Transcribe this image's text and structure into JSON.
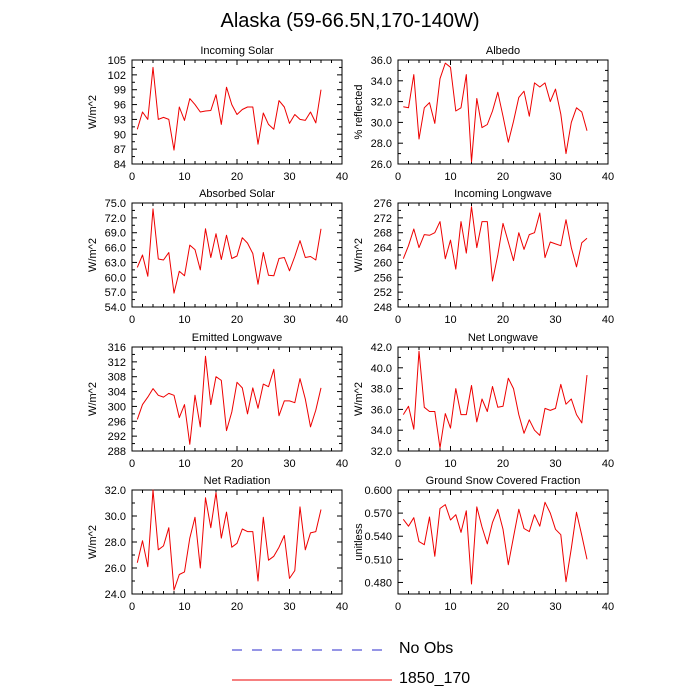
{
  "figure": {
    "title": "Alaska (59-66.5N,170-140W)",
    "legend": [
      {
        "label": "No Obs",
        "color": "#2b2bcc",
        "style": "dashed"
      },
      {
        "label": "1850_170",
        "color": "#ee0000",
        "style": "solid"
      }
    ]
  },
  "chart_data": [
    {
      "type": "line",
      "title": "Incoming Solar",
      "ylabel": "W/m^2",
      "xlabel": "",
      "xlim": [
        0,
        40
      ],
      "ylim": [
        84,
        105
      ],
      "xticks": [
        0,
        10,
        20,
        30,
        40
      ],
      "yticks": [
        84,
        87,
        90,
        93,
        96,
        99,
        102,
        105
      ],
      "ytick_labels": [
        "84",
        "87",
        "90",
        "93",
        "96",
        "99",
        "102",
        "105"
      ],
      "x": [
        1,
        2,
        3,
        4,
        5,
        6,
        7,
        8,
        9,
        10,
        11,
        12,
        13,
        14,
        15,
        16,
        17,
        18,
        19,
        20,
        21,
        22,
        23,
        24,
        25,
        26,
        27,
        28,
        29,
        30,
        31,
        32,
        33,
        34,
        35,
        36
      ],
      "series": [
        {
          "name": "1850_170",
          "color": "#ee0000",
          "values": [
            91.0,
            94.5,
            93.0,
            103.5,
            93.0,
            93.4,
            93.0,
            86.8,
            95.5,
            92.8,
            97.2,
            96.0,
            94.5,
            94.7,
            94.8,
            98.0,
            92.0,
            99.5,
            96.0,
            94.0,
            95.0,
            95.5,
            95.5,
            88.0,
            94.3,
            92.0,
            91.0,
            96.8,
            95.5,
            92.2,
            94.0,
            93.0,
            92.8,
            94.5,
            92.3,
            99.0
          ]
        }
      ]
    },
    {
      "type": "line",
      "title": "Albedo",
      "ylabel": "% reflected",
      "xlabel": "",
      "xlim": [
        0,
        40
      ],
      "ylim": [
        26,
        36
      ],
      "xticks": [
        0,
        10,
        20,
        30,
        40
      ],
      "yticks": [
        26,
        28,
        30,
        32,
        34,
        36
      ],
      "ytick_labels": [
        "26.0",
        "28.0",
        "30.0",
        "32.0",
        "34.0",
        "36.0"
      ],
      "x": [
        1,
        2,
        3,
        4,
        5,
        6,
        7,
        8,
        9,
        10,
        11,
        12,
        13,
        14,
        15,
        16,
        17,
        18,
        19,
        20,
        21,
        22,
        23,
        24,
        25,
        26,
        27,
        28,
        29,
        30,
        31,
        32,
        33,
        34,
        35,
        36
      ],
      "series": [
        {
          "name": "1850_170",
          "color": "#ee0000",
          "values": [
            31.5,
            31.4,
            34.6,
            28.4,
            31.4,
            31.9,
            29.9,
            34.2,
            35.7,
            35.3,
            31.1,
            31.4,
            34.6,
            26.2,
            32.3,
            29.5,
            29.8,
            31.1,
            32.9,
            30.6,
            28.1,
            30.1,
            32.4,
            33.0,
            30.6,
            33.8,
            33.4,
            33.8,
            32.0,
            33.2,
            30.8,
            27.0,
            30.0,
            31.4,
            31.0,
            29.2
          ]
        }
      ]
    },
    {
      "type": "line",
      "title": "Absorbed Solar",
      "ylabel": "W/m^2",
      "xlabel": "",
      "xlim": [
        0,
        40
      ],
      "ylim": [
        54,
        75
      ],
      "xticks": [
        0,
        10,
        20,
        30,
        40
      ],
      "yticks": [
        54,
        57,
        60,
        63,
        66,
        69,
        72,
        75
      ],
      "ytick_labels": [
        "54.0",
        "57.0",
        "60.0",
        "63.0",
        "66.0",
        "69.0",
        "72.0",
        "75.0"
      ],
      "x": [
        1,
        2,
        3,
        4,
        5,
        6,
        7,
        8,
        9,
        10,
        11,
        12,
        13,
        14,
        15,
        16,
        17,
        18,
        19,
        20,
        21,
        22,
        23,
        24,
        25,
        26,
        27,
        28,
        29,
        30,
        31,
        32,
        33,
        34,
        35,
        36
      ],
      "series": [
        {
          "name": "1850_170",
          "color": "#ee0000",
          "values": [
            62.0,
            64.5,
            60.2,
            73.8,
            63.7,
            63.5,
            65.0,
            56.8,
            61.2,
            60.3,
            66.5,
            65.6,
            61.5,
            69.8,
            64.0,
            68.8,
            63.6,
            68.5,
            63.8,
            64.3,
            68.0,
            66.9,
            64.8,
            58.6,
            65.0,
            60.4,
            60.3,
            63.8,
            64.0,
            61.3,
            64.2,
            67.4,
            64.0,
            64.2,
            63.5,
            69.8
          ]
        }
      ]
    },
    {
      "type": "line",
      "title": "Incoming Longwave",
      "ylabel": "W/m^2",
      "xlabel": "",
      "xlim": [
        0,
        40
      ],
      "ylim": [
        248,
        276
      ],
      "xticks": [
        0,
        10,
        20,
        30,
        40
      ],
      "yticks": [
        248,
        252,
        256,
        260,
        264,
        268,
        272,
        276
      ],
      "ytick_labels": [
        "248",
        "252",
        "256",
        "260",
        "264",
        "268",
        "272",
        "276"
      ],
      "x": [
        1,
        2,
        3,
        4,
        5,
        6,
        7,
        8,
        9,
        10,
        11,
        12,
        13,
        14,
        15,
        16,
        17,
        18,
        19,
        20,
        21,
        22,
        23,
        24,
        25,
        26,
        27,
        28,
        29,
        30,
        31,
        32,
        33,
        34,
        35,
        36
      ],
      "series": [
        {
          "name": "1850_170",
          "color": "#ee0000",
          "values": [
            261.0,
            264.5,
            269.0,
            264.0,
            267.5,
            267.3,
            268.0,
            271.0,
            261.0,
            266.0,
            258.2,
            271.0,
            262.5,
            275.0,
            264.0,
            271.0,
            271.0,
            255.0,
            262.0,
            270.5,
            265.5,
            260.5,
            268.0,
            263.5,
            267.5,
            268.0,
            273.3,
            261.3,
            265.5,
            265.0,
            264.5,
            271.5,
            264.0,
            258.8,
            265.3,
            266.5
          ]
        }
      ]
    },
    {
      "type": "line",
      "title": "Emitted Longwave",
      "ylabel": "W/m^2",
      "xlabel": "",
      "xlim": [
        0,
        40
      ],
      "ylim": [
        288,
        316
      ],
      "xticks": [
        0,
        10,
        20,
        30,
        40
      ],
      "yticks": [
        288,
        292,
        296,
        300,
        304,
        308,
        312,
        316
      ],
      "ytick_labels": [
        "288",
        "292",
        "296",
        "300",
        "304",
        "308",
        "312",
        "316"
      ],
      "x": [
        1,
        2,
        3,
        4,
        5,
        6,
        7,
        8,
        9,
        10,
        11,
        12,
        13,
        14,
        15,
        16,
        17,
        18,
        19,
        20,
        21,
        22,
        23,
        24,
        25,
        26,
        27,
        28,
        29,
        30,
        31,
        32,
        33,
        34,
        35,
        36
      ],
      "series": [
        {
          "name": "1850_170",
          "color": "#ee0000",
          "values": [
            296.5,
            300.5,
            302.5,
            304.8,
            303.0,
            302.5,
            303.5,
            303.0,
            297.0,
            300.5,
            289.8,
            303.0,
            294.5,
            313.5,
            300.5,
            308.0,
            307.0,
            293.5,
            298.5,
            306.5,
            305.0,
            298.0,
            305.0,
            299.5,
            306.0,
            305.3,
            310.0,
            297.5,
            301.5,
            301.5,
            301.0,
            307.5,
            302.0,
            294.5,
            299.0,
            305.0
          ]
        }
      ]
    },
    {
      "type": "line",
      "title": "Net Longwave",
      "ylabel": "W/m^2",
      "xlabel": "",
      "xlim": [
        0,
        40
      ],
      "ylim": [
        32,
        42
      ],
      "xticks": [
        0,
        10,
        20,
        30,
        40
      ],
      "yticks": [
        32,
        34,
        36,
        38,
        40,
        42
      ],
      "ytick_labels": [
        "32.0",
        "34.0",
        "36.0",
        "38.0",
        "40.0",
        "42.0"
      ],
      "x": [
        1,
        2,
        3,
        4,
        5,
        6,
        7,
        8,
        9,
        10,
        11,
        12,
        13,
        14,
        15,
        16,
        17,
        18,
        19,
        20,
        21,
        22,
        23,
        24,
        25,
        26,
        27,
        28,
        29,
        30,
        31,
        32,
        33,
        34,
        35,
        36
      ],
      "series": [
        {
          "name": "1850_170",
          "color": "#ee0000",
          "values": [
            35.5,
            36.3,
            34.1,
            41.6,
            36.2,
            35.8,
            35.8,
            32.3,
            35.6,
            34.2,
            38.0,
            35.5,
            35.5,
            38.3,
            34.8,
            37.0,
            35.8,
            38.2,
            36.2,
            36.3,
            39.0,
            38.0,
            35.5,
            33.7,
            35.0,
            34.0,
            33.5,
            36.1,
            35.9,
            36.1,
            38.4,
            36.5,
            37.0,
            35.5,
            34.7,
            39.3
          ]
        }
      ]
    },
    {
      "type": "line",
      "title": "Net Radiation",
      "ylabel": "W/m^2",
      "xlabel": "",
      "xlim": [
        0,
        40
      ],
      "ylim": [
        24,
        32
      ],
      "xticks": [
        0,
        10,
        20,
        30,
        40
      ],
      "yticks": [
        24,
        26,
        28,
        30,
        32
      ],
      "ytick_labels": [
        "24.0",
        "26.0",
        "28.0",
        "30.0",
        "32.0"
      ],
      "x": [
        1,
        2,
        3,
        4,
        5,
        6,
        7,
        8,
        9,
        10,
        11,
        12,
        13,
        14,
        15,
        16,
        17,
        18,
        19,
        20,
        21,
        22,
        23,
        24,
        25,
        26,
        27,
        28,
        29,
        30,
        31,
        32,
        33,
        34,
        35,
        36
      ],
      "series": [
        {
          "name": "1850_170",
          "color": "#ee0000",
          "values": [
            26.4,
            28.1,
            26.1,
            32.0,
            27.4,
            27.7,
            29.1,
            24.3,
            25.5,
            25.7,
            28.3,
            29.9,
            26.0,
            31.4,
            29.1,
            31.8,
            28.3,
            30.3,
            27.6,
            27.9,
            29.0,
            28.8,
            28.8,
            25.0,
            29.9,
            26.6,
            26.9,
            27.6,
            28.5,
            25.2,
            25.8,
            30.7,
            27.4,
            28.7,
            28.8,
            30.5
          ]
        }
      ]
    },
    {
      "type": "line",
      "title": "Ground Snow Covered Fraction",
      "ylabel": "unitless",
      "xlabel": "",
      "xlim": [
        0,
        40
      ],
      "ylim": [
        0.465,
        0.6
      ],
      "xticks": [
        0,
        10,
        20,
        30,
        40
      ],
      "yticks": [
        0.48,
        0.51,
        0.54,
        0.57,
        0.6
      ],
      "ytick_labels": [
        "0.480",
        "0.510",
        "0.540",
        "0.570",
        "0.600"
      ],
      "x": [
        1,
        2,
        3,
        4,
        5,
        6,
        7,
        8,
        9,
        10,
        11,
        12,
        13,
        14,
        15,
        16,
        17,
        18,
        19,
        20,
        21,
        22,
        23,
        24,
        25,
        26,
        27,
        28,
        29,
        30,
        31,
        32,
        33,
        34,
        35,
        36
      ],
      "series": [
        {
          "name": "1850_170",
          "color": "#ee0000",
          "values": [
            0.562,
            0.553,
            0.564,
            0.533,
            0.529,
            0.565,
            0.514,
            0.576,
            0.581,
            0.561,
            0.568,
            0.545,
            0.573,
            0.478,
            0.578,
            0.552,
            0.53,
            0.558,
            0.575,
            0.549,
            0.503,
            0.539,
            0.575,
            0.55,
            0.546,
            0.568,
            0.553,
            0.584,
            0.57,
            0.549,
            0.542,
            0.481,
            0.524,
            0.571,
            0.541,
            0.51
          ]
        }
      ]
    }
  ]
}
